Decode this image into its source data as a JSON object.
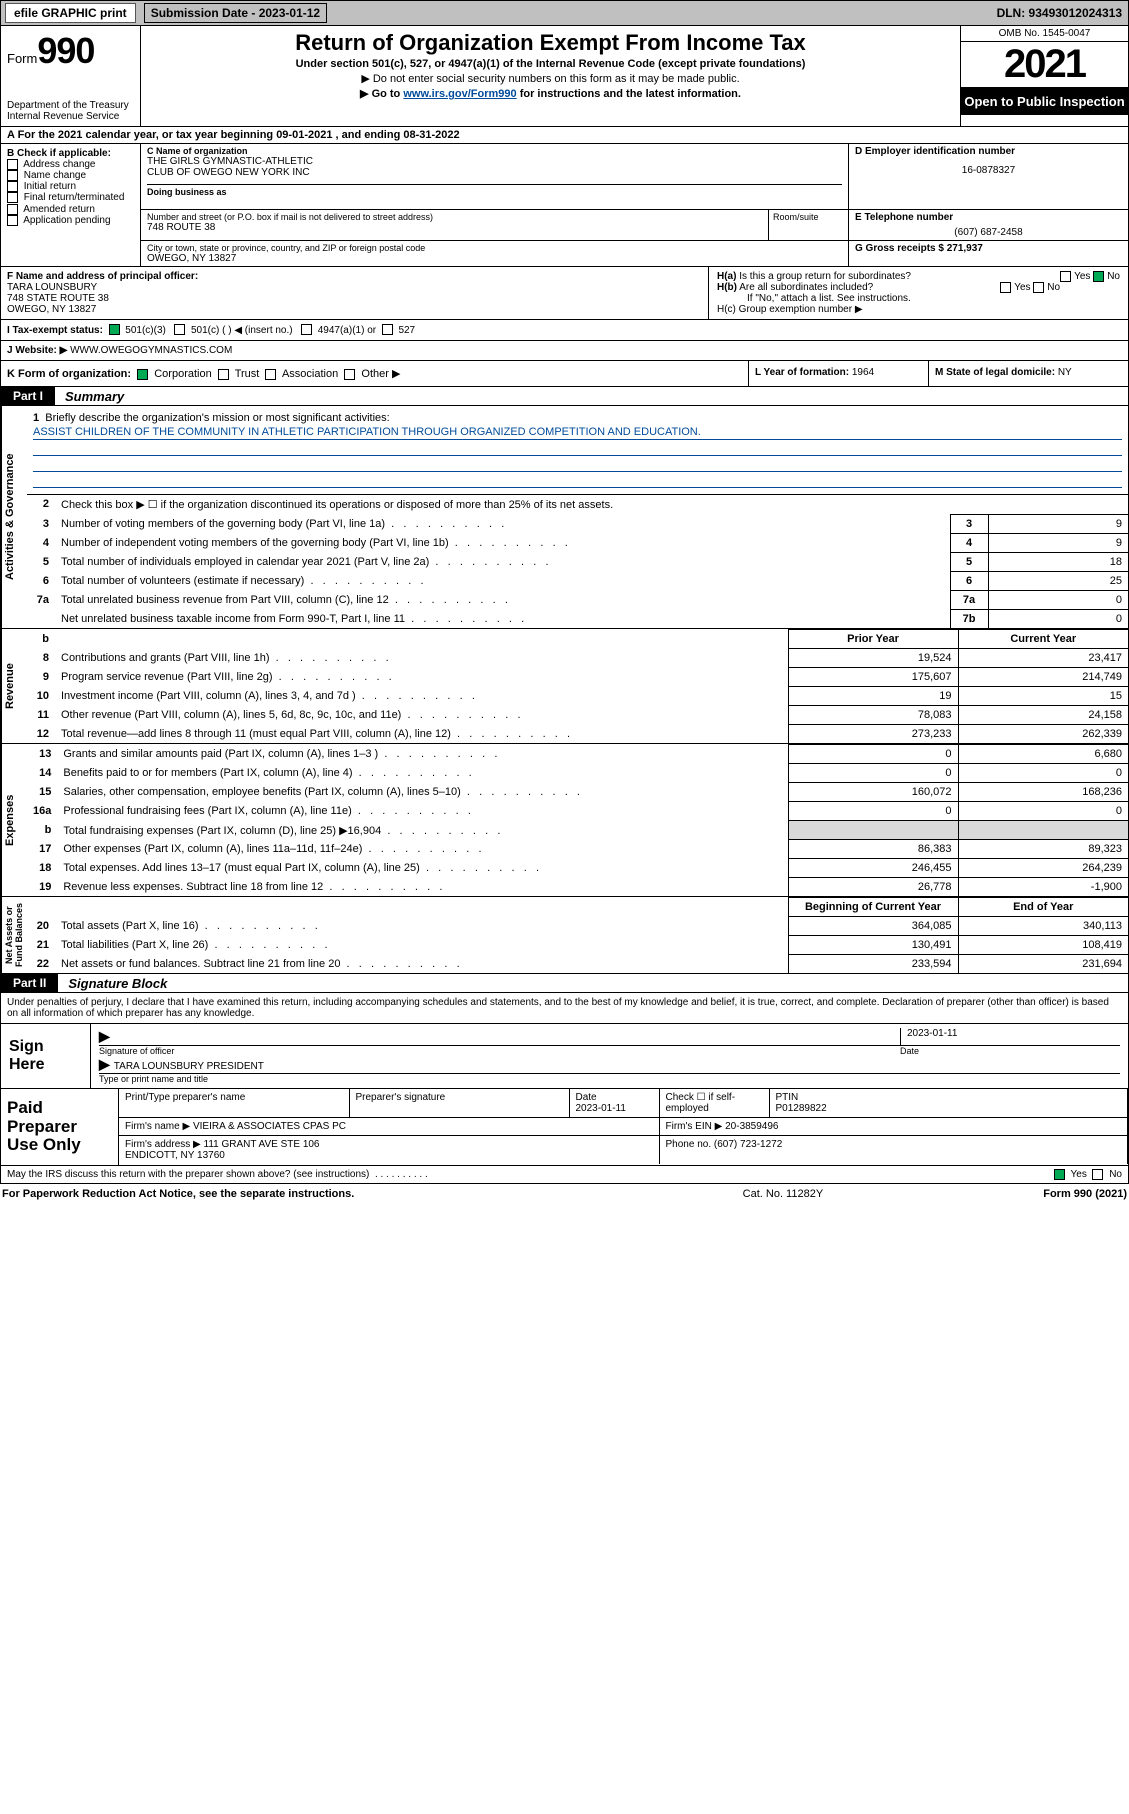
{
  "topbar": {
    "efile": "efile GRAPHIC print",
    "subdate_label": "Submission Date - 2023-01-12",
    "dln": "DLN: 93493012024313"
  },
  "header": {
    "form_label": "Form",
    "form_no": "990",
    "dept": "Department of the Treasury\nInternal Revenue Service",
    "title": "Return of Organization Exempt From Income Tax",
    "sub": "Under section 501(c), 527, or 4947(a)(1) of the Internal Revenue Code (except private foundations)",
    "line1": "▶ Do not enter social security numbers on this form as it may be made public.",
    "line2a": "▶ Go to ",
    "line2link": "www.irs.gov/Form990",
    "line2b": " for instructions and the latest information.",
    "omb": "OMB No. 1545-0047",
    "year": "2021",
    "opento": "Open to Public Inspection"
  },
  "row_a": "A For the 2021 calendar year, or tax year beginning 09-01-2021   , and ending 08-31-2022",
  "col_b": {
    "hdr": "B Check if applicable:",
    "items": [
      "Address change",
      "Name change",
      "Initial return",
      "Final return/terminated",
      "Amended return",
      "Application pending"
    ]
  },
  "col_c": {
    "name_hdr": "C Name of organization",
    "name": "THE GIRLS GYMNASTIC-ATHLETIC\nCLUB OF OWEGO NEW YORK INC",
    "dba_hdr": "Doing business as",
    "addr_hdr": "Number and street (or P.O. box if mail is not delivered to street address)",
    "addr": "748 ROUTE 38",
    "room_hdr": "Room/suite",
    "city_hdr": "City or town, state or province, country, and ZIP or foreign postal code",
    "city": "OWEGO, NY  13827",
    "emp_hdr": "D Employer identification number",
    "emp": "16-0878327",
    "phone_hdr": "E Telephone number",
    "phone": "(607) 687-2458",
    "gross_hdr": "G Gross receipts $",
    "gross": "271,937"
  },
  "col_f": {
    "hdr": "F  Name and address of principal officer:",
    "name": "TARA LOUNSBURY",
    "addr1": "748 STATE ROUTE 38",
    "addr2": "OWEGO, NY  13827"
  },
  "col_h": {
    "ha": "H(a)  Is this a group return for subordinates?",
    "hb": "H(b)  Are all subordinates included?",
    "hb2": "If \"No,\" attach a list. See instructions.",
    "hc": "H(c)  Group exemption number ▶",
    "yes": "Yes",
    "no": "No"
  },
  "row_i": {
    "lbl": "I   Tax-exempt status:",
    "o1": "501(c)(3)",
    "o2": "501(c) (  ) ◀ (insert no.)",
    "o3": "4947(a)(1) or",
    "o4": "527"
  },
  "row_j": {
    "lbl": "J   Website: ▶ ",
    "val": "WWW.OWEGOGYMNASTICS.COM"
  },
  "row_k": {
    "lbl": "K Form of organization:",
    "o1": "Corporation",
    "o2": "Trust",
    "o3": "Association",
    "o4": "Other ▶",
    "l_lbl": "L Year of formation: ",
    "l_val": "1964",
    "m_lbl": "M State of legal domicile: ",
    "m_val": "NY"
  },
  "part1": {
    "tag": "Part I",
    "title": "Summary"
  },
  "side": {
    "ag": "Activities & Governance",
    "rev": "Revenue",
    "exp": "Expenses",
    "na": "Net Assets or\nFund Balances"
  },
  "mission": {
    "q": "1  Briefly describe the organization's mission or most significant activities:",
    "txt": "ASSIST CHILDREN OF THE COMMUNITY IN ATHLETIC PARTICIPATION THROUGH ORGANIZED COMPETITION AND EDUCATION."
  },
  "gov": [
    {
      "no": "2",
      "txt": "Check this box ▶ ☐  if the organization discontinued its operations or disposed of more than 25% of its net assets.",
      "boxnum": "",
      "boxval": ""
    },
    {
      "no": "3",
      "txt": "Number of voting members of the governing body (Part VI, line 1a)",
      "boxnum": "3",
      "boxval": "9"
    },
    {
      "no": "4",
      "txt": "Number of independent voting members of the governing body (Part VI, line 1b)",
      "boxnum": "4",
      "boxval": "9"
    },
    {
      "no": "5",
      "txt": "Total number of individuals employed in calendar year 2021 (Part V, line 2a)",
      "boxnum": "5",
      "boxval": "18"
    },
    {
      "no": "6",
      "txt": "Total number of volunteers (estimate if necessary)",
      "boxnum": "6",
      "boxval": "25"
    },
    {
      "no": "7a",
      "txt": "Total unrelated business revenue from Part VIII, column (C), line 12",
      "boxnum": "7a",
      "boxval": "0"
    },
    {
      "no": "",
      "txt": "Net unrelated business taxable income from Form 990-T, Part I, line 11",
      "boxnum": "7b",
      "boxval": "0"
    }
  ],
  "revhdr": {
    "b": "b",
    "prior": "Prior Year",
    "curr": "Current Year"
  },
  "rev": [
    {
      "no": "8",
      "txt": "Contributions and grants (Part VIII, line 1h)",
      "prior": "19,524",
      "curr": "23,417"
    },
    {
      "no": "9",
      "txt": "Program service revenue (Part VIII, line 2g)",
      "prior": "175,607",
      "curr": "214,749"
    },
    {
      "no": "10",
      "txt": "Investment income (Part VIII, column (A), lines 3, 4, and 7d )",
      "prior": "19",
      "curr": "15"
    },
    {
      "no": "11",
      "txt": "Other revenue (Part VIII, column (A), lines 5, 6d, 8c, 9c, 10c, and 11e)",
      "prior": "78,083",
      "curr": "24,158"
    },
    {
      "no": "12",
      "txt": "Total revenue—add lines 8 through 11 (must equal Part VIII, column (A), line 12)",
      "prior": "273,233",
      "curr": "262,339"
    }
  ],
  "exp": [
    {
      "no": "13",
      "txt": "Grants and similar amounts paid (Part IX, column (A), lines 1–3 )",
      "prior": "0",
      "curr": "6,680"
    },
    {
      "no": "14",
      "txt": "Benefits paid to or for members (Part IX, column (A), line 4)",
      "prior": "0",
      "curr": "0"
    },
    {
      "no": "15",
      "txt": "Salaries, other compensation, employee benefits (Part IX, column (A), lines 5–10)",
      "prior": "160,072",
      "curr": "168,236"
    },
    {
      "no": "16a",
      "txt": "Professional fundraising fees (Part IX, column (A), line 11e)",
      "prior": "0",
      "curr": "0"
    },
    {
      "no": "b",
      "txt": "Total fundraising expenses (Part IX, column (D), line 25) ▶16,904",
      "prior": "shaded",
      "curr": "shaded"
    },
    {
      "no": "17",
      "txt": "Other expenses (Part IX, column (A), lines 11a–11d, 11f–24e)",
      "prior": "86,383",
      "curr": "89,323"
    },
    {
      "no": "18",
      "txt": "Total expenses. Add lines 13–17 (must equal Part IX, column (A), line 25)",
      "prior": "246,455",
      "curr": "264,239"
    },
    {
      "no": "19",
      "txt": "Revenue less expenses. Subtract line 18 from line 12",
      "prior": "26,778",
      "curr": "-1,900"
    }
  ],
  "nahdr": {
    "prior": "Beginning of Current Year",
    "curr": "End of Year"
  },
  "na": [
    {
      "no": "20",
      "txt": "Total assets (Part X, line 16)",
      "prior": "364,085",
      "curr": "340,113"
    },
    {
      "no": "21",
      "txt": "Total liabilities (Part X, line 26)",
      "prior": "130,491",
      "curr": "108,419"
    },
    {
      "no": "22",
      "txt": "Net assets or fund balances. Subtract line 21 from line 20",
      "prior": "233,594",
      "curr": "231,694"
    }
  ],
  "part2": {
    "tag": "Part II",
    "title": "Signature Block"
  },
  "sig_intro": "Under penalties of perjury, I declare that I have examined this return, including accompanying schedules and statements, and to the best of my knowledge and belief, it is true, correct, and complete. Declaration of preparer (other than officer) is based on all information of which preparer has any knowledge.",
  "sign": {
    "lbl": "Sign Here",
    "date": "2023-01-11",
    "sigof": "Signature of officer",
    "datel": "Date",
    "name": "TARA LOUNSBURY  PRESIDENT",
    "namel": "Type or print name and title"
  },
  "paid": {
    "lbl": "Paid Preparer Use Only",
    "h1": "Print/Type preparer's name",
    "h2": "Preparer's signature",
    "h3": "Date",
    "date": "2023-01-11",
    "h4": "Check ☐ if self-employed",
    "h5": "PTIN",
    "ptin": "P01289822",
    "firm_l": "Firm's name    ▶",
    "firm": "VIEIRA & ASSOCIATES CPAS PC",
    "ein_l": "Firm's EIN ▶",
    "ein": "20-3859496",
    "addr_l": "Firm's address ▶",
    "addr": "111 GRANT AVE STE 106\nENDICOTT, NY  13760",
    "phone_l": "Phone no.",
    "phone": "(607) 723-1272"
  },
  "discuss": {
    "txt": "May the IRS discuss this return with the preparer shown above? (see instructions)",
    "yes": "Yes",
    "no": "No"
  },
  "bottom": {
    "l": "For Paperwork Reduction Act Notice, see the separate instructions.",
    "m": "Cat. No. 11282Y",
    "r": "Form 990 (2021)"
  }
}
